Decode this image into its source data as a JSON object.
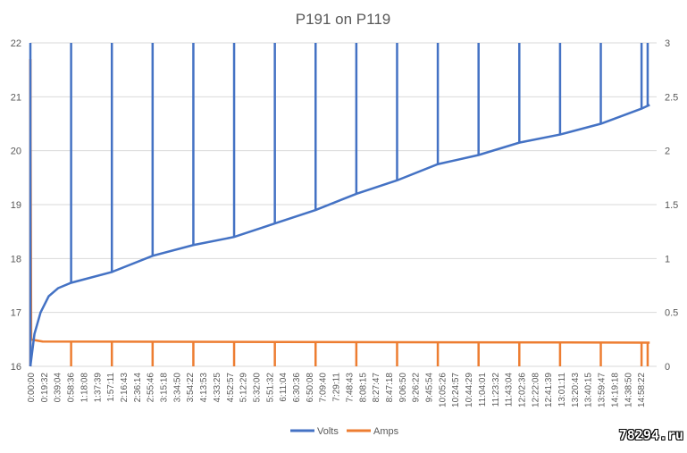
{
  "chart_data": {
    "type": "line",
    "title": "P191 on P119",
    "xlabel": "",
    "ylabel": "",
    "y2label": "",
    "x_unit": "hours elapsed",
    "ylim": [
      16,
      22
    ],
    "y2lim": [
      0,
      3
    ],
    "yticks": [
      16,
      17,
      18,
      19,
      20,
      21,
      22
    ],
    "y2ticks": [
      "0",
      "0.5",
      "1",
      "1.5",
      "2",
      "2.5",
      "3"
    ],
    "xlim_hours": [
      0,
      15.37
    ],
    "x_tick_labels": [
      "0:00:00",
      "0:19:32",
      "0:39:04",
      "0:58:36",
      "1:18:08",
      "1:37:39",
      "1:57:11",
      "2:16:43",
      "2:36:14",
      "2:55:46",
      "3:15:18",
      "3:34:50",
      "3:54:22",
      "4:13:53",
      "4:33:25",
      "4:52:57",
      "5:12:29",
      "5:32:00",
      "5:51:32",
      "6:11:04",
      "6:30:36",
      "6:50:08",
      "7:09:40",
      "7:29:11",
      "7:48:43",
      "8:08:15",
      "8:27:47",
      "8:47:18",
      "9:06:50",
      "9:26:22",
      "9:45:54",
      "10:05:26",
      "10:24:57",
      "10:44:29",
      "11:04:01",
      "11:23:32",
      "11:43:04",
      "12:02:36",
      "12:22:08",
      "12:41:39",
      "13:01:11",
      "13:20:43",
      "13:40:15",
      "13:59:47",
      "14:19:18",
      "14:38:50",
      "14:58:22"
    ],
    "grid": true,
    "legend": "bottom",
    "series": [
      {
        "name": "Volts",
        "axis": "left",
        "color": "#4472C4",
        "points": [
          [
            0,
            16
          ],
          [
            0.1,
            16.6
          ],
          [
            0.25,
            17.0
          ],
          [
            0.45,
            17.3
          ],
          [
            0.68,
            17.45
          ],
          [
            1,
            17.55
          ],
          [
            2,
            17.75
          ],
          [
            3,
            18.05
          ],
          [
            4,
            18.25
          ],
          [
            5,
            18.4
          ],
          [
            6,
            18.65
          ],
          [
            7,
            18.9
          ],
          [
            8,
            19.2
          ],
          [
            9,
            19.45
          ],
          [
            10,
            19.75
          ],
          [
            11,
            19.92
          ],
          [
            12,
            20.15
          ],
          [
            13,
            20.3
          ],
          [
            14,
            20.5
          ],
          [
            15,
            20.78
          ],
          [
            15.2,
            20.85
          ]
        ],
        "spikes_to": 22,
        "spike_hours": [
          0,
          1,
          2,
          3,
          4,
          5,
          6,
          7,
          8,
          9,
          10,
          11,
          12,
          13,
          14,
          15,
          15.15
        ]
      },
      {
        "name": "Amps",
        "axis": "right",
        "color": "#ED7D31",
        "points": [
          [
            0,
            0.25
          ],
          [
            0.3,
            0.23
          ],
          [
            15.2,
            0.22
          ]
        ],
        "initial_peak": 2.85,
        "spikes_to": 0,
        "spike_hours": [
          1,
          2,
          3,
          4,
          5,
          6,
          7,
          8,
          9,
          10,
          11,
          12,
          13,
          14,
          15,
          15.15
        ]
      }
    ]
  },
  "watermark": "78294.ru"
}
